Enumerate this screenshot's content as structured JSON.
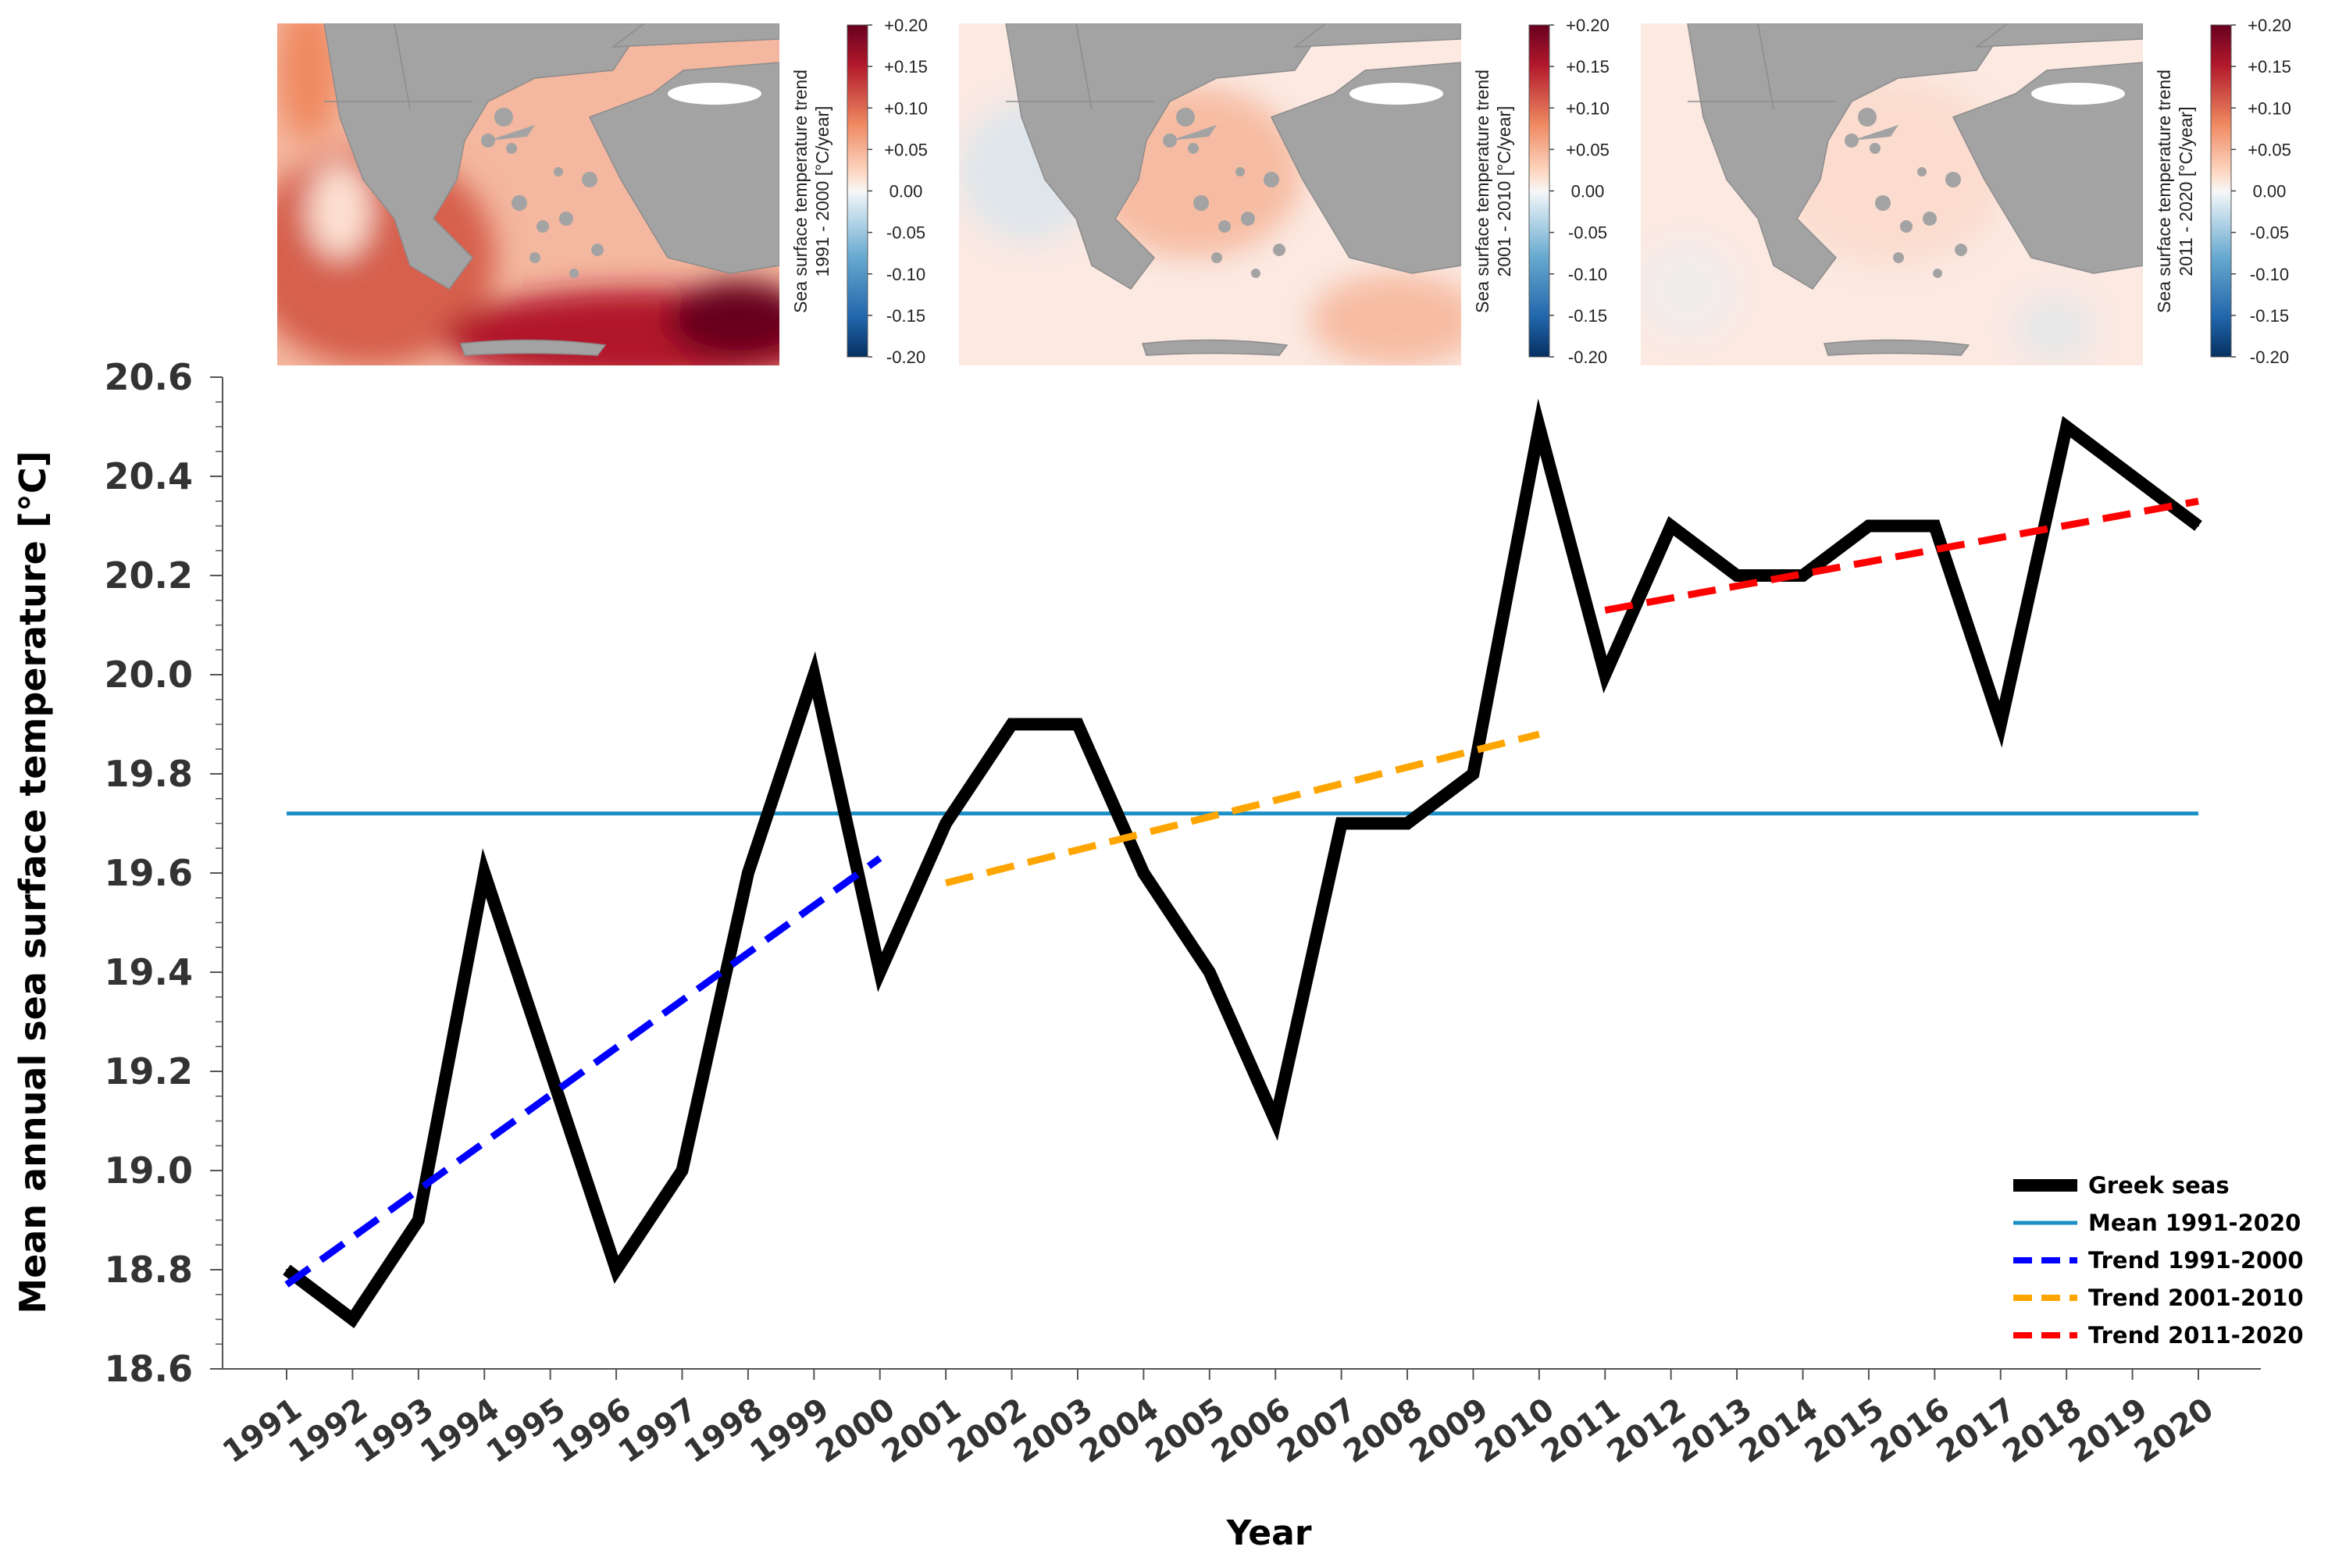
{
  "chart_data": {
    "type": "line",
    "xlabel": "Year",
    "ylabel": "Mean annual sea surface temperature [°C]",
    "ylim": [
      18.6,
      20.6
    ],
    "yticks": [
      18.6,
      18.8,
      19.0,
      19.2,
      19.4,
      19.6,
      19.8,
      20.0,
      20.2,
      20.4,
      20.6
    ],
    "ytick_labels": [
      "18.6",
      "18.8",
      "19.0",
      "19.2",
      "19.4",
      "19.6",
      "19.8",
      "20.0",
      "20.2",
      "20.4",
      "20.6"
    ],
    "x": [
      1991,
      1992,
      1993,
      1994,
      1995,
      1996,
      1997,
      1998,
      1999,
      2000,
      2001,
      2002,
      2003,
      2004,
      2005,
      2006,
      2007,
      2008,
      2009,
      2010,
      2011,
      2012,
      2013,
      2014,
      2015,
      2016,
      2017,
      2018,
      2019,
      2020
    ],
    "xtick_labels": [
      "1991",
      "1992",
      "1993",
      "1994",
      "1995",
      "1996",
      "1997",
      "1998",
      "1999",
      "2000",
      "2001",
      "2002",
      "2003",
      "2004",
      "2005",
      "2006",
      "2007",
      "2008",
      "2009",
      "2010",
      "2011",
      "2012",
      "2013",
      "2014",
      "2015",
      "2016",
      "2017",
      "2018",
      "2019",
      "2020"
    ],
    "series": [
      {
        "name": "Greek seas",
        "color": "#000000",
        "style": "solid",
        "values": [
          18.8,
          18.7,
          18.9,
          19.6,
          19.2,
          18.8,
          19.0,
          19.6,
          20.0,
          19.4,
          19.7,
          19.9,
          19.9,
          19.6,
          19.4,
          19.1,
          19.7,
          19.7,
          19.8,
          20.5,
          20.0,
          20.3,
          20.2,
          20.2,
          20.3,
          20.3,
          19.9,
          20.5,
          20.4,
          20.3
        ]
      },
      {
        "name": "Mean 1991-2020",
        "color": "#1b8fc6",
        "style": "solid",
        "x": [
          1991,
          2020
        ],
        "values": [
          19.72,
          19.72
        ]
      },
      {
        "name": "Trend 1991-2000",
        "color": "#0000ff",
        "style": "dashed",
        "x": [
          1991,
          2000
        ],
        "values": [
          18.77,
          19.63
        ]
      },
      {
        "name": "Trend 2001-2010",
        "color": "#ffa500",
        "style": "dashed",
        "x": [
          2001,
          2010
        ],
        "values": [
          19.58,
          19.88
        ]
      },
      {
        "name": "Trend 2011-2020",
        "color": "#ff0000",
        "style": "dashed",
        "x": [
          2011,
          2020
        ],
        "values": [
          20.13,
          20.35
        ]
      }
    ],
    "legend": "bottom-right",
    "maps": [
      {
        "period": "1991 - 2000",
        "intensity": 1.0
      },
      {
        "period": "2001 - 2010",
        "intensity": 0.4
      },
      {
        "period": "2011 - 2020",
        "intensity": 0.25
      }
    ],
    "colorbar": {
      "label": "Sea surface temperature trend",
      "unit": "[°C/year]",
      "tick_values": [
        0.2,
        0.15,
        0.1,
        0.05,
        0.0,
        -0.05,
        -0.1,
        -0.15,
        -0.2
      ],
      "tick_labels": [
        "+0.20",
        "+0.15",
        "+0.10",
        "+0.05",
        "0.00",
        "-0.05",
        "-0.10",
        "-0.15",
        "-0.20"
      ],
      "colors": {
        "positive": "#b2182b",
        "neutral": "#f7f7f7",
        "negative": "#2166ac",
        "land": "#a3a3a3"
      }
    }
  }
}
